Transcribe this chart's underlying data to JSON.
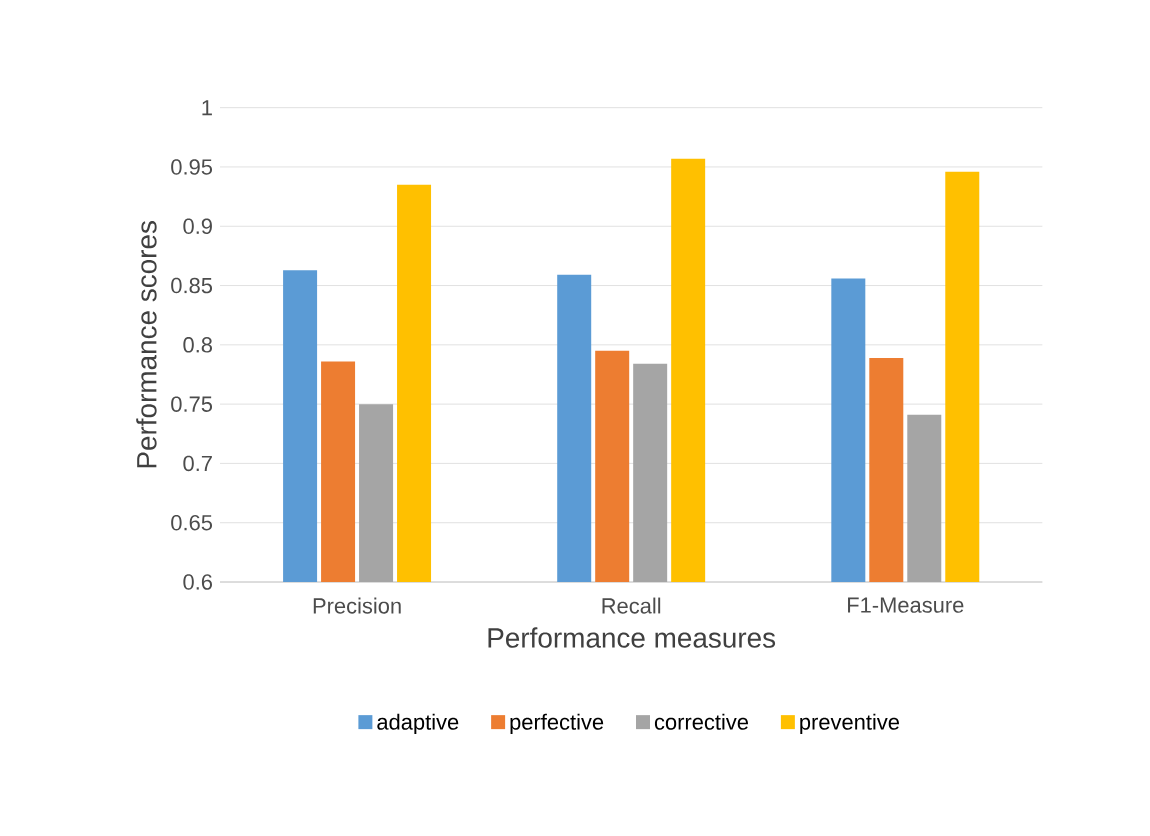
{
  "chart_data": {
    "type": "bar",
    "xlabel": "Performance measures",
    "ylabel": "Performance scores",
    "categories": [
      "Precision",
      "Recall",
      "F1-Measure"
    ],
    "series": [
      {
        "name": "adaptive",
        "color": "#5b9bd5",
        "values": [
          0.863,
          0.859,
          0.856
        ]
      },
      {
        "name": "perfective",
        "color": "#ed7d31",
        "values": [
          0.786,
          0.795,
          0.789
        ]
      },
      {
        "name": "corrective",
        "color": "#a5a5a5",
        "values": [
          0.75,
          0.784,
          0.741
        ]
      },
      {
        "name": "preventive",
        "color": "#ffc000",
        "values": [
          0.935,
          0.957,
          0.946
        ]
      }
    ],
    "ylim": [
      0.6,
      1
    ],
    "yticks": [
      0.6,
      0.65,
      0.7,
      0.75,
      0.8,
      0.85,
      0.9,
      0.95,
      1
    ],
    "grid": "y",
    "legend": "bottom"
  }
}
